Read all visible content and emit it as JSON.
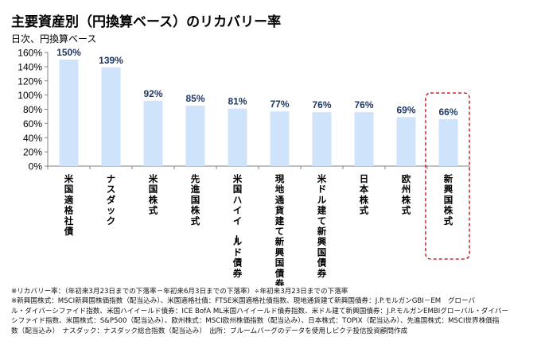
{
  "header": {
    "title": "主要資産別（円換算ベース）のリカバリー率",
    "subtitle": "日次、円換算ベース"
  },
  "chart_data": {
    "type": "bar",
    "title": "主要資産別（円換算ベース）のリカバリー率",
    "subtitle": "日次、円換算ベース",
    "xlabel": "",
    "ylabel": "",
    "ylim": [
      0,
      160
    ],
    "y_ticks": [
      0,
      20,
      40,
      60,
      80,
      100,
      120,
      140,
      160
    ],
    "y_tick_labels": [
      "0%",
      "20%",
      "40%",
      "60%",
      "80%",
      "100%",
      "120%",
      "140%",
      "160%"
    ],
    "grid": false,
    "legend": "none",
    "categories": [
      "米国適格社債",
      "ナスダック",
      "米国株式",
      "先進国株式",
      "米国ハイイールド債券",
      "現地通貨建て新興国債券",
      "米ドル建て新興国債券",
      "日本株式",
      "欧州株式",
      "新興国株式"
    ],
    "values": [
      150,
      139,
      92,
      85,
      81,
      77,
      76,
      76,
      69,
      66
    ],
    "data_labels": [
      "150%",
      "139%",
      "92%",
      "85%",
      "81%",
      "77%",
      "76%",
      "76%",
      "69%",
      "66%"
    ],
    "highlighted_category": "新興国株式",
    "colors": {
      "bar": "#cfe3fa",
      "data_label": "#1f3864",
      "axis": "#808080",
      "highlight_border": "#c00000"
    }
  },
  "footnotes": [
    "※リカバリー率：（年初来3月23日までの下落率－年初来6月3日までの下落率）÷年初来3月23日までの下落率",
    "※新興国株式：MSCI新興国株価指数（配当込み）、米国適格社債：FTSE米国適格社債指数、現地通貨建て新興国債券：J.P.モルガンGBI－EM　グローバ",
    "ル・ダイバーシファイド指数、米国ハイイールド債券：ICE BofA ML米国ハイイールド債券指数、米ドル建て新興国債券：J.P.モルガンEMBIグローバル・ダイバー",
    "シファイド指数、米国株式：S&P500（配当込み）、欧州株式：MSCI欧州株価指数（配当込み）、日本株式：TOPIX（配当込み）、先進国株式：MSCI世界株価指",
    "数（配当込み）　ナスダック：ナスダック総合指数（配当込み）　出所：ブルームバーグのデータを使用しピクテ投信投資顧問作成"
  ]
}
